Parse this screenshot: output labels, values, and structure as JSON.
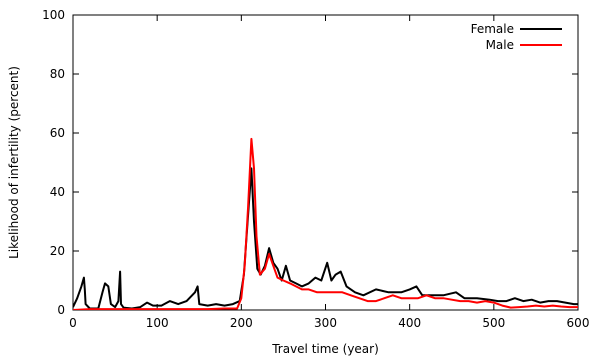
{
  "chart_data": {
    "type": "line",
    "title": "",
    "xlabel": "Travel time (year)",
    "ylabel": "Likelihood of infertility (percent)",
    "xlim": [
      0,
      600
    ],
    "ylim": [
      0,
      100
    ],
    "x_ticks": [
      0,
      100,
      200,
      300,
      400,
      500,
      600
    ],
    "y_ticks": [
      0,
      20,
      40,
      60,
      80,
      100
    ],
    "grid": false,
    "legend_position": "top-right",
    "series": [
      {
        "name": "Female",
        "color": "#000000",
        "points": [
          [
            0,
            1
          ],
          [
            5,
            4
          ],
          [
            10,
            8
          ],
          [
            13,
            11
          ],
          [
            14,
            7
          ],
          [
            15,
            2
          ],
          [
            20,
            0.5
          ],
          [
            30,
            0.5
          ],
          [
            35,
            6
          ],
          [
            38,
            9
          ],
          [
            42,
            8
          ],
          [
            45,
            2
          ],
          [
            50,
            1
          ],
          [
            54,
            3
          ],
          [
            56,
            13
          ],
          [
            57,
            2
          ],
          [
            60,
            0.8
          ],
          [
            70,
            0.5
          ],
          [
            80,
            1
          ],
          [
            88,
            2.5
          ],
          [
            95,
            1.5
          ],
          [
            105,
            1.5
          ],
          [
            115,
            3
          ],
          [
            125,
            2
          ],
          [
            135,
            3
          ],
          [
            145,
            6
          ],
          [
            148,
            8
          ],
          [
            150,
            2
          ],
          [
            160,
            1.5
          ],
          [
            170,
            2
          ],
          [
            180,
            1.5
          ],
          [
            190,
            2
          ],
          [
            198,
            3
          ],
          [
            203,
            12
          ],
          [
            207,
            28
          ],
          [
            212,
            48
          ],
          [
            215,
            30
          ],
          [
            219,
            14
          ],
          [
            223,
            12
          ],
          [
            228,
            15
          ],
          [
            233,
            21
          ],
          [
            238,
            16
          ],
          [
            243,
            14
          ],
          [
            248,
            10
          ],
          [
            253,
            15
          ],
          [
            258,
            10
          ],
          [
            265,
            9
          ],
          [
            272,
            8
          ],
          [
            280,
            9
          ],
          [
            288,
            11
          ],
          [
            295,
            10
          ],
          [
            302,
            16
          ],
          [
            307,
            10
          ],
          [
            312,
            12
          ],
          [
            318,
            13
          ],
          [
            325,
            8
          ],
          [
            335,
            6
          ],
          [
            345,
            5
          ],
          [
            360,
            7
          ],
          [
            375,
            6
          ],
          [
            390,
            6
          ],
          [
            400,
            7
          ],
          [
            408,
            8
          ],
          [
            415,
            5
          ],
          [
            425,
            5
          ],
          [
            440,
            5
          ],
          [
            455,
            6
          ],
          [
            465,
            4
          ],
          [
            480,
            4
          ],
          [
            495,
            3.5
          ],
          [
            505,
            3
          ],
          [
            515,
            3
          ],
          [
            525,
            4
          ],
          [
            535,
            3
          ],
          [
            545,
            3.5
          ],
          [
            555,
            2.5
          ],
          [
            565,
            3
          ],
          [
            575,
            3
          ],
          [
            585,
            2.5
          ],
          [
            595,
            2
          ],
          [
            600,
            2
          ]
        ]
      },
      {
        "name": "Male",
        "color": "#ff0000",
        "points": [
          [
            0,
            0
          ],
          [
            20,
            0.3
          ],
          [
            40,
            0.3
          ],
          [
            60,
            0.3
          ],
          [
            80,
            0.3
          ],
          [
            100,
            0.3
          ],
          [
            120,
            0.3
          ],
          [
            140,
            0.3
          ],
          [
            160,
            0.3
          ],
          [
            180,
            0.5
          ],
          [
            195,
            0.5
          ],
          [
            200,
            4
          ],
          [
            204,
            15
          ],
          [
            208,
            35
          ],
          [
            212,
            58
          ],
          [
            215,
            48
          ],
          [
            218,
            25
          ],
          [
            222,
            12
          ],
          [
            228,
            14
          ],
          [
            233,
            19
          ],
          [
            238,
            15
          ],
          [
            243,
            11
          ],
          [
            250,
            10
          ],
          [
            258,
            9
          ],
          [
            265,
            8
          ],
          [
            272,
            7
          ],
          [
            280,
            7
          ],
          [
            290,
            6
          ],
          [
            300,
            6
          ],
          [
            310,
            6
          ],
          [
            320,
            6
          ],
          [
            330,
            5
          ],
          [
            340,
            4
          ],
          [
            350,
            3
          ],
          [
            360,
            3
          ],
          [
            370,
            4
          ],
          [
            380,
            5
          ],
          [
            390,
            4
          ],
          [
            400,
            4
          ],
          [
            410,
            4
          ],
          [
            420,
            5
          ],
          [
            430,
            4
          ],
          [
            440,
            4
          ],
          [
            450,
            3.5
          ],
          [
            460,
            3
          ],
          [
            470,
            3
          ],
          [
            480,
            2.5
          ],
          [
            490,
            3
          ],
          [
            500,
            2.5
          ],
          [
            510,
            1.5
          ],
          [
            520,
            0.8
          ],
          [
            530,
            1
          ],
          [
            540,
            1.2
          ],
          [
            550,
            1.5
          ],
          [
            560,
            1.2
          ],
          [
            570,
            1.5
          ],
          [
            580,
            1.2
          ],
          [
            590,
            1
          ],
          [
            600,
            1
          ]
        ]
      }
    ]
  }
}
